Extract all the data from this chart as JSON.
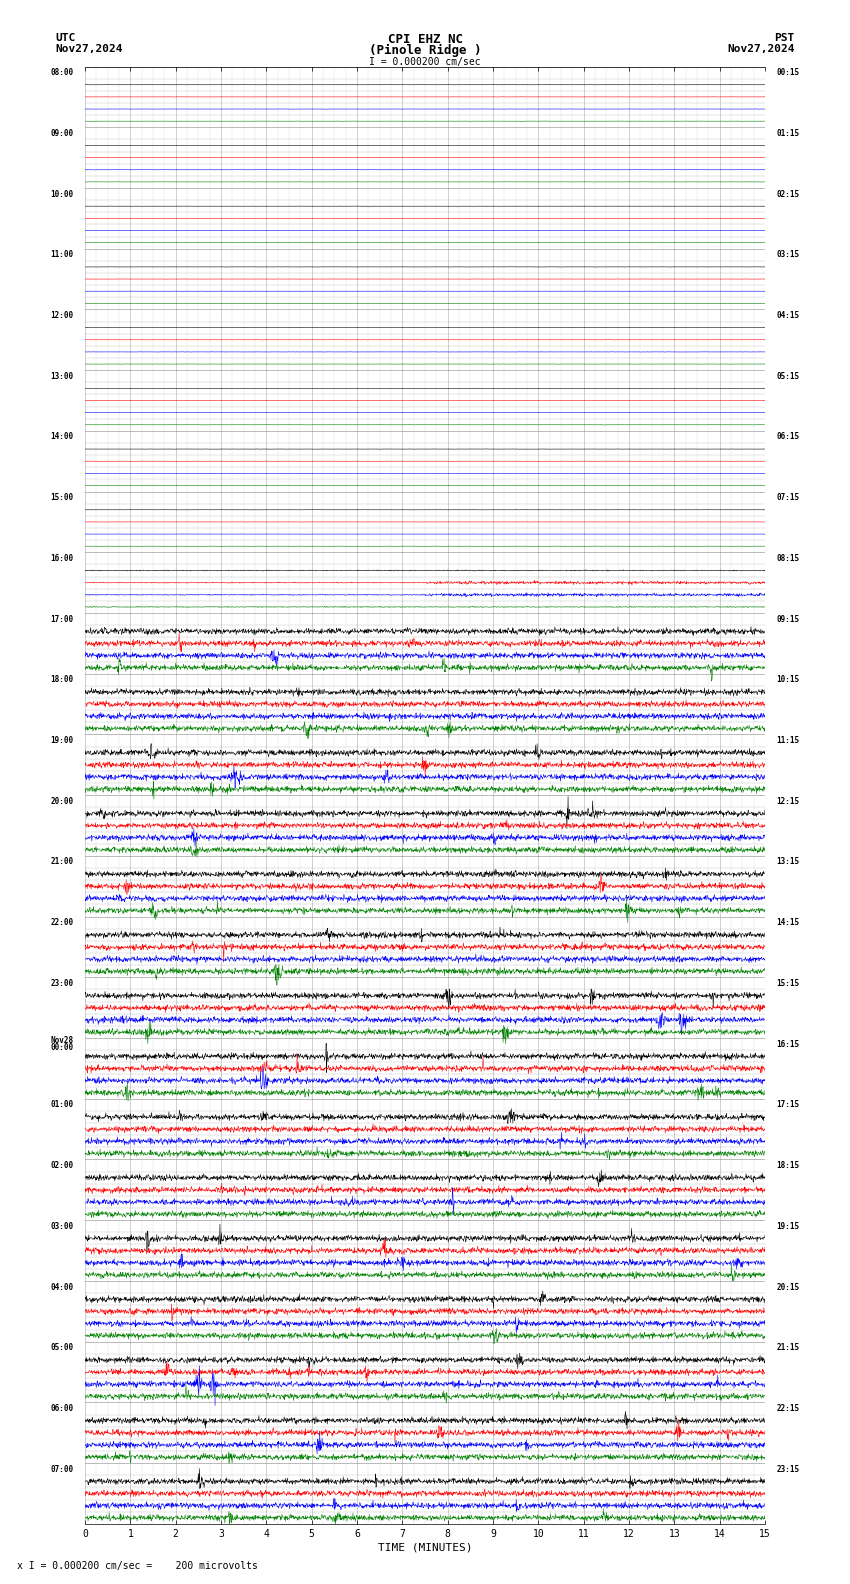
{
  "title_line1": "CPI EHZ NC",
  "title_line2": "(Pinole Ridge )",
  "scale_label": "I = 0.000200 cm/sec",
  "footer_label": "x I = 0.000200 cm/sec =    200 microvolts",
  "left_header": "UTC",
  "left_date": "Nov27,2024",
  "right_header": "PST",
  "right_date": "Nov27,2024",
  "xlabel": "TIME (MINUTES)",
  "xmin": 0,
  "xmax": 15,
  "xticks": [
    0,
    1,
    2,
    3,
    4,
    5,
    6,
    7,
    8,
    9,
    10,
    11,
    12,
    13,
    14,
    15
  ],
  "background_color": "#ffffff",
  "grid_color": "#888888",
  "trace_colors": [
    "black",
    "red",
    "blue",
    "green"
  ],
  "row_labels_utc": [
    "08:00",
    "09:00",
    "10:00",
    "11:00",
    "12:00",
    "13:00",
    "14:00",
    "15:00",
    "16:00",
    "17:00",
    "18:00",
    "19:00",
    "20:00",
    "21:00",
    "22:00",
    "23:00",
    "Nov28\n00:00",
    "01:00",
    "02:00",
    "03:00",
    "04:00",
    "05:00",
    "06:00",
    "07:00"
  ],
  "row_labels_pst": [
    "00:15",
    "01:15",
    "02:15",
    "03:15",
    "04:15",
    "05:15",
    "06:15",
    "07:15",
    "08:15",
    "09:15",
    "10:15",
    "11:15",
    "12:15",
    "13:15",
    "14:15",
    "15:15",
    "16:15",
    "17:15",
    "18:15",
    "19:15",
    "20:15",
    "21:15",
    "22:15",
    "23:15"
  ],
  "n_hour_rows": 24,
  "traces_per_hour": 4,
  "noise_scale": [
    0.3,
    0.4,
    0.35,
    0.25
  ],
  "quiet_until_hour": 8,
  "seed": 42
}
